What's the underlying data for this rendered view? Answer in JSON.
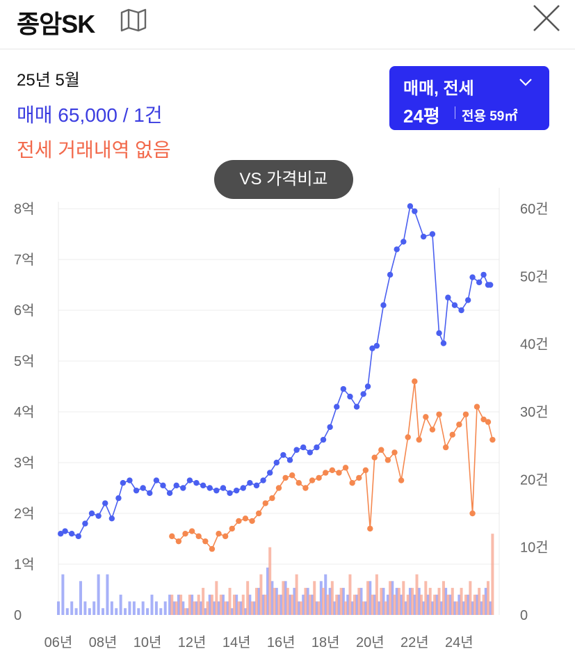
{
  "header": {
    "title": "종암SK",
    "map_icon": "map-icon",
    "close_icon": "close-icon"
  },
  "summary": {
    "period": "25년 5월",
    "sale": "매매 65,000 / 1건",
    "jeonse": "전세 거래내역 없음"
  },
  "filter": {
    "type": "매매, 전세",
    "size": "24평",
    "area": "전용 59㎡",
    "icon": "chevron-down-icon"
  },
  "compare_button": "VS 가격비교",
  "colors": {
    "sale": "#4a5ff0",
    "jeonse": "#f5884f",
    "sale_bar": "#8a97f5",
    "jeonse_bar": "#f7a48f",
    "filter_bg": "#2b2bf0"
  },
  "chart_data": {
    "type": "line",
    "x_tick_labels": [
      "06년",
      "08년",
      "10년",
      "12년",
      "14년",
      "16년",
      "18년",
      "20년",
      "22년",
      "24년"
    ],
    "x_tick_years": [
      2006,
      2008,
      2010,
      2012,
      2014,
      2016,
      2018,
      2020,
      2022,
      2024
    ],
    "x_range": [
      2006.0,
      2025.8
    ],
    "y_left_labels": [
      "0",
      "1억",
      "2억",
      "3억",
      "4억",
      "5억",
      "6억",
      "7억",
      "8억"
    ],
    "y_left_values": [
      0,
      1,
      2,
      3,
      4,
      5,
      6,
      7,
      8
    ],
    "y_left_range": [
      0,
      8
    ],
    "y_right_labels": [
      "0",
      "10건",
      "20건",
      "30건",
      "40건",
      "50건",
      "60건"
    ],
    "y_right_values": [
      0,
      10,
      20,
      30,
      40,
      50,
      60
    ],
    "y_right_range": [
      0,
      60
    ],
    "grid": true,
    "series": [
      {
        "name": "매매",
        "axis": "left",
        "points": [
          [
            2006.1,
            1.6
          ],
          [
            2006.3,
            1.65
          ],
          [
            2006.6,
            1.6
          ],
          [
            2006.9,
            1.55
          ],
          [
            2007.2,
            1.8
          ],
          [
            2007.5,
            2.0
          ],
          [
            2007.8,
            1.95
          ],
          [
            2008.1,
            2.2
          ],
          [
            2008.4,
            1.9
          ],
          [
            2008.7,
            2.3
          ],
          [
            2008.9,
            2.6
          ],
          [
            2009.2,
            2.65
          ],
          [
            2009.5,
            2.45
          ],
          [
            2009.8,
            2.5
          ],
          [
            2010.1,
            2.4
          ],
          [
            2010.4,
            2.65
          ],
          [
            2010.7,
            2.55
          ],
          [
            2011.0,
            2.4
          ],
          [
            2011.3,
            2.55
          ],
          [
            2011.6,
            2.5
          ],
          [
            2011.9,
            2.65
          ],
          [
            2012.2,
            2.6
          ],
          [
            2012.5,
            2.55
          ],
          [
            2012.8,
            2.5
          ],
          [
            2013.1,
            2.45
          ],
          [
            2013.4,
            2.5
          ],
          [
            2013.7,
            2.4
          ],
          [
            2014.0,
            2.45
          ],
          [
            2014.3,
            2.5
          ],
          [
            2014.6,
            2.6
          ],
          [
            2014.9,
            2.55
          ],
          [
            2015.2,
            2.65
          ],
          [
            2015.5,
            2.8
          ],
          [
            2015.8,
            3.0
          ],
          [
            2016.1,
            3.15
          ],
          [
            2016.4,
            3.05
          ],
          [
            2016.7,
            3.25
          ],
          [
            2017.0,
            3.3
          ],
          [
            2017.3,
            3.2
          ],
          [
            2017.6,
            3.3
          ],
          [
            2017.9,
            3.45
          ],
          [
            2018.2,
            3.7
          ],
          [
            2018.5,
            4.1
          ],
          [
            2018.8,
            4.45
          ],
          [
            2019.1,
            4.3
          ],
          [
            2019.4,
            4.1
          ],
          [
            2019.7,
            4.35
          ],
          [
            2019.9,
            4.5
          ],
          [
            2020.1,
            5.25
          ],
          [
            2020.3,
            5.3
          ],
          [
            2020.6,
            6.1
          ],
          [
            2020.9,
            6.7
          ],
          [
            2021.2,
            7.2
          ],
          [
            2021.5,
            7.35
          ],
          [
            2021.8,
            8.05
          ],
          [
            2022.0,
            7.95
          ],
          [
            2022.4,
            7.45
          ],
          [
            2022.8,
            7.5
          ],
          [
            2023.1,
            5.55
          ],
          [
            2023.3,
            5.35
          ],
          [
            2023.5,
            6.25
          ],
          [
            2023.8,
            6.1
          ],
          [
            2024.1,
            6.0
          ],
          [
            2024.4,
            6.2
          ],
          [
            2024.6,
            6.65
          ],
          [
            2024.9,
            6.55
          ],
          [
            2025.1,
            6.7
          ],
          [
            2025.3,
            6.5
          ],
          [
            2025.4,
            6.5
          ]
        ]
      },
      {
        "name": "전세",
        "axis": "left",
        "points": [
          [
            2011.1,
            1.55
          ],
          [
            2011.4,
            1.45
          ],
          [
            2011.7,
            1.6
          ],
          [
            2012.0,
            1.65
          ],
          [
            2012.3,
            1.55
          ],
          [
            2012.6,
            1.45
          ],
          [
            2012.9,
            1.3
          ],
          [
            2013.2,
            1.6
          ],
          [
            2013.5,
            1.55
          ],
          [
            2013.8,
            1.7
          ],
          [
            2014.1,
            1.85
          ],
          [
            2014.4,
            1.9
          ],
          [
            2014.7,
            1.85
          ],
          [
            2015.0,
            2.0
          ],
          [
            2015.3,
            2.2
          ],
          [
            2015.6,
            2.3
          ],
          [
            2015.9,
            2.5
          ],
          [
            2016.2,
            2.7
          ],
          [
            2016.5,
            2.75
          ],
          [
            2016.8,
            2.6
          ],
          [
            2017.1,
            2.5
          ],
          [
            2017.4,
            2.65
          ],
          [
            2017.7,
            2.7
          ],
          [
            2018.0,
            2.8
          ],
          [
            2018.3,
            2.85
          ],
          [
            2018.6,
            2.8
          ],
          [
            2018.9,
            2.9
          ],
          [
            2019.2,
            2.6
          ],
          [
            2019.5,
            2.7
          ],
          [
            2019.8,
            2.85
          ],
          [
            2020.0,
            1.7
          ],
          [
            2020.2,
            3.1
          ],
          [
            2020.5,
            3.25
          ],
          [
            2020.8,
            3.05
          ],
          [
            2021.1,
            3.2
          ],
          [
            2021.4,
            2.65
          ],
          [
            2021.7,
            3.5
          ],
          [
            2022.0,
            4.6
          ],
          [
            2022.2,
            3.45
          ],
          [
            2022.5,
            3.9
          ],
          [
            2022.8,
            3.65
          ],
          [
            2023.1,
            3.95
          ],
          [
            2023.4,
            3.3
          ],
          [
            2023.7,
            3.55
          ],
          [
            2024.0,
            3.75
          ],
          [
            2024.3,
            3.95
          ],
          [
            2024.6,
            2.0
          ],
          [
            2024.8,
            4.1
          ],
          [
            2025.1,
            3.85
          ],
          [
            2025.3,
            3.8
          ],
          [
            2025.5,
            3.45
          ]
        ]
      },
      {
        "name": "매매 거래량",
        "axis": "right",
        "type": "bar",
        "years": [
          2006.0,
          2006.2,
          2006.4,
          2006.6,
          2006.8,
          2007.0,
          2007.2,
          2007.4,
          2007.6,
          2007.8,
          2008.0,
          2008.2,
          2008.4,
          2008.6,
          2008.8,
          2009.0,
          2009.2,
          2009.4,
          2009.6,
          2009.8,
          2010.0,
          2010.2,
          2010.4,
          2010.6,
          2010.8,
          2011.0,
          2011.2,
          2011.4,
          2011.6,
          2011.8,
          2012.0,
          2012.2,
          2012.4,
          2012.6,
          2012.8,
          2013.0,
          2013.2,
          2013.4,
          2013.6,
          2013.8,
          2014.0,
          2014.2,
          2014.4,
          2014.6,
          2014.8,
          2015.0,
          2015.2,
          2015.4,
          2015.6,
          2015.8,
          2016.0,
          2016.2,
          2016.4,
          2016.6,
          2016.8,
          2017.0,
          2017.2,
          2017.4,
          2017.6,
          2017.8,
          2018.0,
          2018.2,
          2018.4,
          2018.6,
          2018.8,
          2019.0,
          2019.2,
          2019.4,
          2019.6,
          2019.8,
          2020.0,
          2020.2,
          2020.4,
          2020.6,
          2020.8,
          2021.0,
          2021.2,
          2021.4,
          2021.6,
          2021.8,
          2022.0,
          2022.2,
          2022.4,
          2022.6,
          2022.8,
          2023.0,
          2023.2,
          2023.4,
          2023.6,
          2023.8,
          2024.0,
          2024.2,
          2024.4,
          2024.6,
          2024.8,
          2025.0,
          2025.2,
          2025.4
        ],
        "values": [
          2,
          6,
          1,
          2,
          1,
          5,
          2,
          1,
          2,
          6,
          1,
          6,
          2,
          1,
          3,
          1,
          2,
          2,
          1,
          2,
          1,
          3,
          2,
          1,
          2,
          3,
          2,
          3,
          2,
          1,
          3,
          2,
          2,
          1,
          3,
          2,
          2,
          3,
          2,
          1,
          3,
          2,
          1,
          3,
          2,
          4,
          3,
          7,
          5,
          4,
          3,
          5,
          3,
          4,
          2,
          3,
          4,
          3,
          2,
          5,
          6,
          4,
          2,
          3,
          4,
          3,
          2,
          3,
          4,
          2,
          5,
          3,
          2,
          4,
          3,
          5,
          4,
          3,
          2,
          4,
          3,
          4,
          2,
          3,
          2,
          3,
          2,
          4,
          3,
          2,
          3,
          2,
          3,
          2,
          3,
          2,
          4,
          2
        ]
      },
      {
        "name": "전세 거래량",
        "axis": "right",
        "type": "bar",
        "years": [
          2011.1,
          2011.3,
          2011.5,
          2011.7,
          2011.9,
          2012.1,
          2012.3,
          2012.5,
          2012.7,
          2012.9,
          2013.1,
          2013.3,
          2013.5,
          2013.7,
          2013.9,
          2014.1,
          2014.3,
          2014.5,
          2014.7,
          2014.9,
          2015.1,
          2015.3,
          2015.5,
          2015.7,
          2015.9,
          2016.1,
          2016.3,
          2016.5,
          2016.7,
          2016.9,
          2017.1,
          2017.3,
          2017.5,
          2017.7,
          2017.9,
          2018.1,
          2018.3,
          2018.5,
          2018.7,
          2018.9,
          2019.1,
          2019.3,
          2019.5,
          2019.7,
          2019.9,
          2020.1,
          2020.3,
          2020.5,
          2020.7,
          2020.9,
          2021.1,
          2021.3,
          2021.5,
          2021.7,
          2021.9,
          2022.1,
          2022.3,
          2022.5,
          2022.7,
          2022.9,
          2023.1,
          2023.3,
          2023.5,
          2023.7,
          2023.9,
          2024.1,
          2024.3,
          2024.5,
          2024.7,
          2024.9,
          2025.1,
          2025.3,
          2025.5
        ],
        "values": [
          3,
          2,
          3,
          1,
          3,
          2,
          3,
          4,
          2,
          3,
          5,
          3,
          2,
          4,
          3,
          2,
          3,
          5,
          2,
          4,
          6,
          3,
          10,
          4,
          3,
          5,
          4,
          3,
          6,
          2,
          4,
          3,
          5,
          2,
          4,
          3,
          5,
          3,
          4,
          2,
          6,
          3,
          4,
          2,
          5,
          3,
          6,
          4,
          2,
          5,
          3,
          4,
          5,
          3,
          4,
          6,
          3,
          5,
          4,
          3,
          4,
          5,
          3,
          4,
          2,
          4,
          3,
          5,
          3,
          4,
          3,
          5,
          12
        ]
      }
    ]
  }
}
